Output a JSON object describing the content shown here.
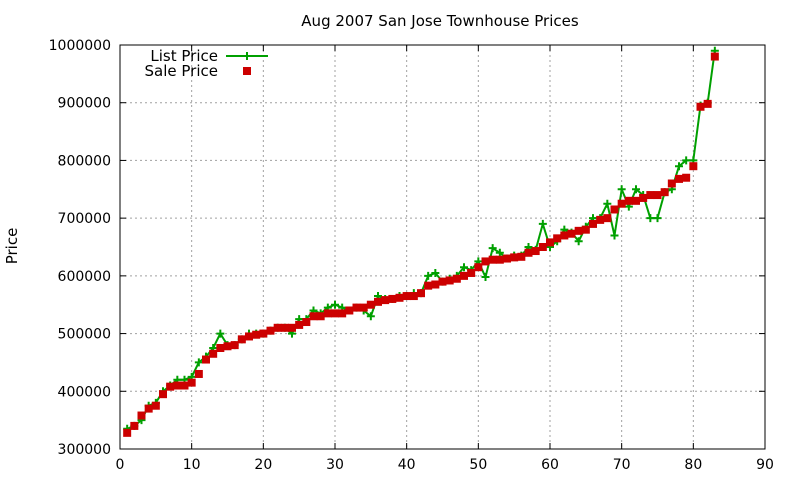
{
  "chart_data": {
    "type": "line",
    "title": "Aug 2007 San Jose Townhouse Prices",
    "xlabel": "",
    "ylabel": "Price",
    "xlim": [
      0,
      90
    ],
    "ylim": [
      300000,
      1000000
    ],
    "xticks": [
      0,
      10,
      20,
      30,
      40,
      50,
      60,
      70,
      80,
      90
    ],
    "yticks": [
      300000,
      400000,
      500000,
      600000,
      700000,
      800000,
      900000,
      1000000
    ],
    "grid": true,
    "legend": "top-left",
    "series": [
      {
        "name": "List Price",
        "color": "#00a000",
        "marker": "plus",
        "x": [
          1,
          2,
          3,
          4,
          5,
          6,
          7,
          8,
          9,
          10,
          11,
          12,
          13,
          14,
          15,
          16,
          17,
          18,
          19,
          20,
          21,
          22,
          23,
          24,
          25,
          26,
          27,
          28,
          29,
          30,
          31,
          32,
          33,
          34,
          35,
          36,
          37,
          38,
          39,
          40,
          41,
          42,
          43,
          44,
          45,
          46,
          47,
          48,
          49,
          50,
          51,
          52,
          53,
          54,
          55,
          56,
          57,
          58,
          59,
          60,
          61,
          62,
          63,
          64,
          65,
          66,
          67,
          68,
          69,
          70,
          71,
          72,
          73,
          74,
          75,
          76,
          77,
          78,
          79,
          80,
          81,
          82,
          83
        ],
        "y": [
          335000,
          340000,
          350000,
          375000,
          380000,
          400000,
          410000,
          420000,
          420000,
          425000,
          450000,
          460000,
          475000,
          500000,
          480000,
          480000,
          490000,
          500000,
          500000,
          500000,
          505000,
          510000,
          510000,
          500000,
          525000,
          525000,
          540000,
          535000,
          545000,
          550000,
          545000,
          540000,
          545000,
          540000,
          530000,
          565000,
          560000,
          560000,
          565000,
          565000,
          570000,
          570000,
          600000,
          605000,
          590000,
          595000,
          600000,
          615000,
          610000,
          625000,
          598000,
          648000,
          640000,
          630000,
          635000,
          635000,
          650000,
          645000,
          690000,
          650000,
          660000,
          680000,
          675000,
          660000,
          685000,
          700000,
          700000,
          725000,
          670000,
          750000,
          720000,
          750000,
          740000,
          700000,
          700000,
          745000,
          750000,
          790000,
          800000,
          800000,
          895000,
          900000,
          990000
        ]
      },
      {
        "name": "Sale Price",
        "color": "#cc0000",
        "marker": "square",
        "x": [
          1,
          2,
          3,
          4,
          5,
          6,
          7,
          8,
          9,
          10,
          11,
          12,
          13,
          14,
          15,
          16,
          17,
          18,
          19,
          20,
          21,
          22,
          23,
          24,
          25,
          26,
          27,
          28,
          29,
          30,
          31,
          32,
          33,
          34,
          35,
          36,
          37,
          38,
          39,
          40,
          41,
          42,
          43,
          44,
          45,
          46,
          47,
          48,
          49,
          50,
          51,
          52,
          53,
          54,
          55,
          56,
          57,
          58,
          59,
          60,
          61,
          62,
          63,
          64,
          65,
          66,
          67,
          68,
          69,
          70,
          71,
          72,
          73,
          74,
          75,
          76,
          77,
          78,
          79,
          80,
          81,
          82,
          83
        ],
        "y": [
          328000,
          340000,
          358000,
          370000,
          375000,
          395000,
          408000,
          410000,
          410000,
          415000,
          430000,
          455000,
          465000,
          475000,
          478000,
          480000,
          490000,
          495000,
          498000,
          500000,
          505000,
          510000,
          510000,
          510000,
          515000,
          520000,
          530000,
          530000,
          535000,
          535000,
          535000,
          540000,
          545000,
          545000,
          550000,
          555000,
          558000,
          560000,
          562000,
          565000,
          565000,
          570000,
          583000,
          585000,
          590000,
          592000,
          595000,
          600000,
          605000,
          615000,
          625000,
          628000,
          628000,
          630000,
          632000,
          633000,
          640000,
          643000,
          650000,
          658000,
          665000,
          670000,
          673000,
          678000,
          680000,
          690000,
          697000,
          700000,
          715000,
          725000,
          730000,
          730000,
          735000,
          740000,
          740000,
          745000,
          760000,
          768000,
          770000,
          790000,
          893000,
          898000,
          980000
        ]
      }
    ]
  }
}
